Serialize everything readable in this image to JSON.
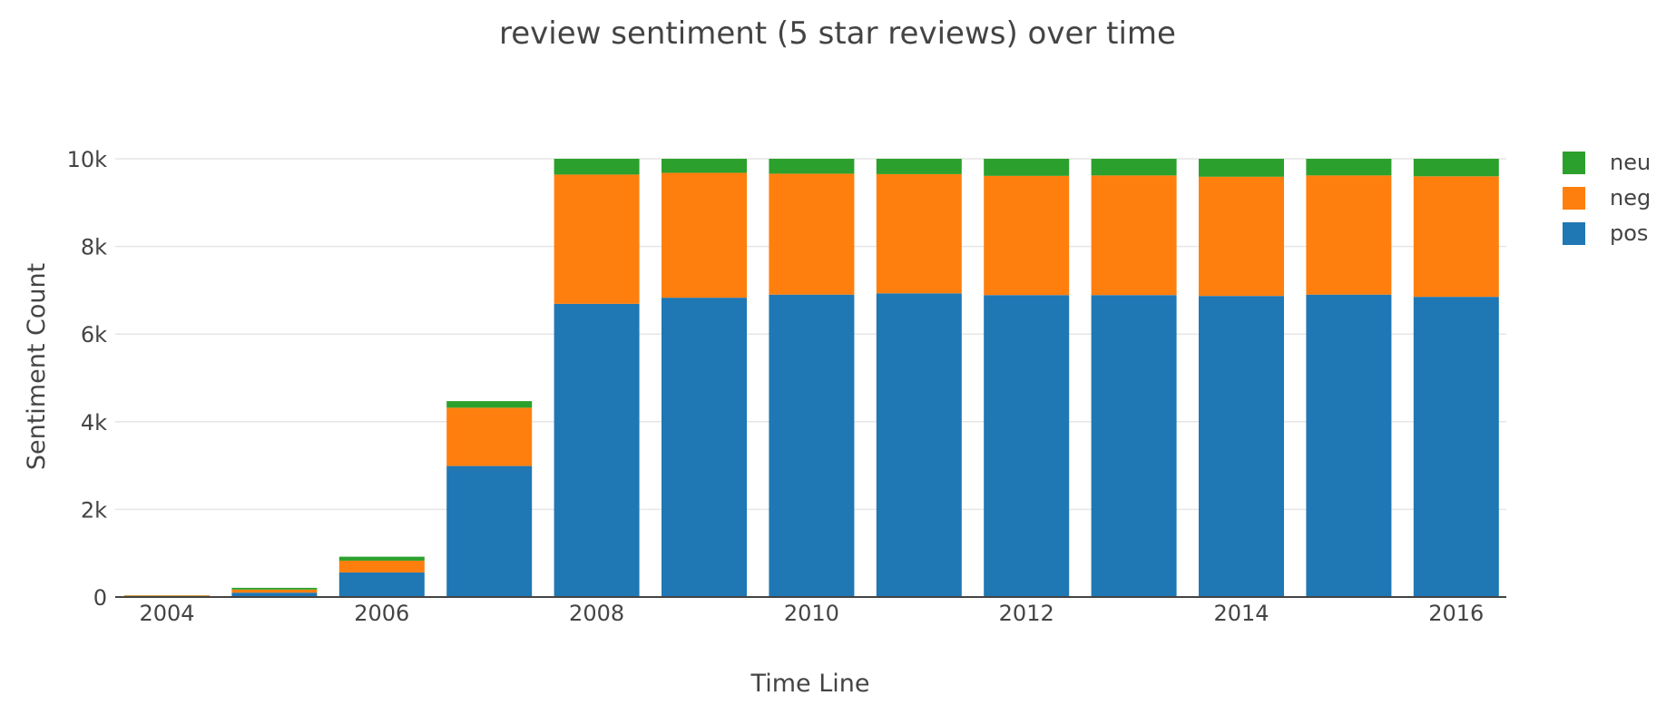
{
  "chart_data": {
    "type": "bar",
    "stacked": true,
    "title": "review sentiment (5 star reviews) over time",
    "xlabel": "Time Line",
    "ylabel": "Sentiment Count",
    "categories": [
      2004,
      2005,
      2006,
      2007,
      2008,
      2009,
      2010,
      2011,
      2012,
      2013,
      2014,
      2015,
      2016
    ],
    "x_ticks": [
      2004,
      2006,
      2008,
      2010,
      2012,
      2014,
      2016
    ],
    "y_ticks": [
      0,
      2000,
      4000,
      6000,
      8000,
      10000
    ],
    "y_tick_labels": [
      "0",
      "2k",
      "4k",
      "6k",
      "8k",
      "10k"
    ],
    "ylim": [
      0,
      10400
    ],
    "grid": true,
    "legend_position": "top-right",
    "series": [
      {
        "name": "pos",
        "color": "#1f77b4",
        "values": [
          10,
          100,
          560,
          2990,
          6690,
          6830,
          6900,
          6930,
          6890,
          6890,
          6870,
          6900,
          6850
        ]
      },
      {
        "name": "neg",
        "color": "#ff7f0e",
        "values": [
          25,
          70,
          270,
          1330,
          2950,
          2850,
          2760,
          2720,
          2720,
          2730,
          2720,
          2720,
          2750
        ]
      },
      {
        "name": "neu",
        "color": "#2ca02c",
        "values": [
          5,
          40,
          90,
          150,
          360,
          320,
          340,
          350,
          390,
          380,
          410,
          380,
          400
        ]
      }
    ],
    "legend_order": [
      "neu",
      "neg",
      "pos"
    ]
  }
}
